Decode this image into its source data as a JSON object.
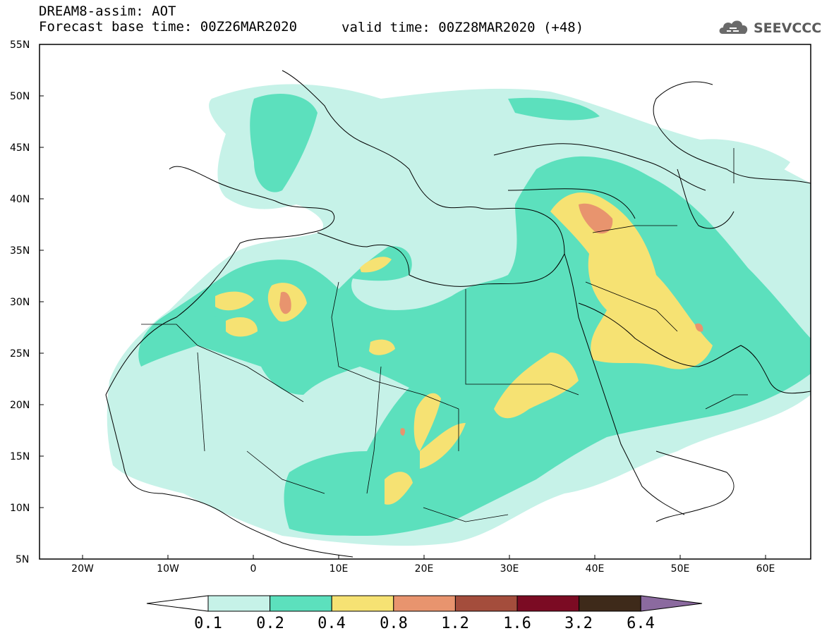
{
  "title": {
    "line1": "DREAM8-assim: AOT",
    "line2": "Forecast base time: 00Z26MAR2020",
    "valid": "valid time: 00Z28MAR2020 (+48)"
  },
  "logo": {
    "text": "SEEVCCC"
  },
  "axes": {
    "lat_labels": [
      "55N",
      "50N",
      "45N",
      "40N",
      "35N",
      "30N",
      "25N",
      "20N",
      "15N",
      "10N",
      "5N"
    ],
    "lon_labels": [
      "20W",
      "10W",
      "0",
      "10E",
      "20E",
      "30E",
      "40E",
      "50E",
      "60E"
    ]
  },
  "colorbar": {
    "labels": [
      "0.1",
      "0.2",
      "0.4",
      "0.8",
      "1.2",
      "1.6",
      "3.2",
      "6.4"
    ],
    "colors": [
      "#ffffff",
      "#c6f2e8",
      "#5ce0bd",
      "#f6e273",
      "#e8946e",
      "#a44d3c",
      "#7b0b23",
      "#3e2a1a",
      "#8b6a9f"
    ]
  },
  "chart_data": {
    "type": "heatmap",
    "variable": "AOT",
    "bounds": {
      "lon": [
        -25,
        65
      ],
      "lat": [
        5,
        55
      ]
    },
    "levels": [
      0.1,
      0.2,
      0.4,
      0.8,
      1.2,
      1.6,
      3.2,
      6.4
    ]
  }
}
